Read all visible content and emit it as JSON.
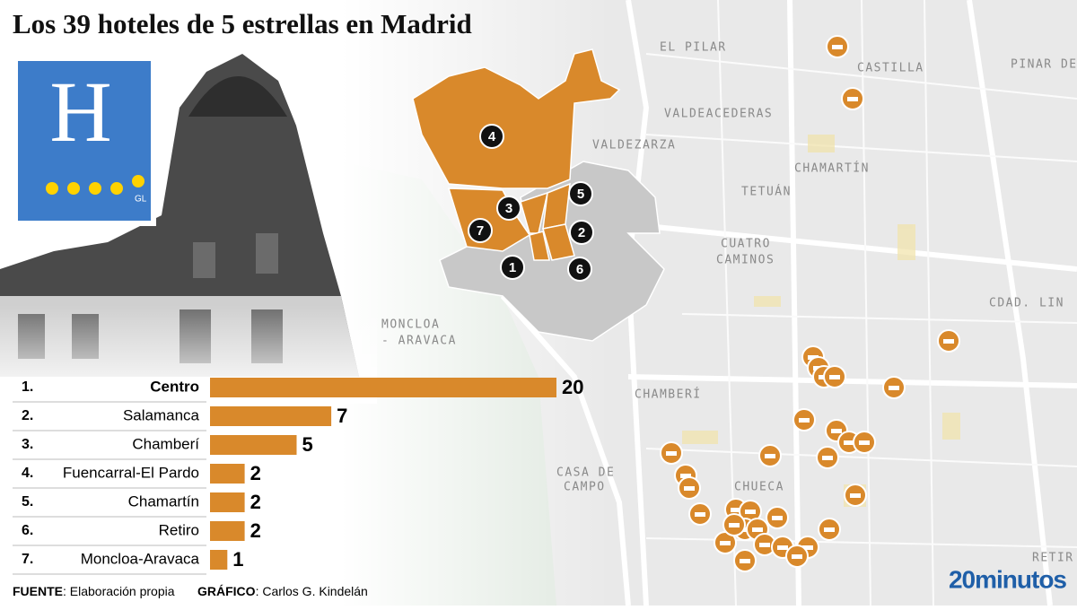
{
  "chart_data": {
    "type": "bar",
    "orientation": "horizontal",
    "title": "Los 39 hoteles de 5 estrellas en Madrid",
    "ranks": [
      "1.",
      "2.",
      "3.",
      "4.",
      "5.",
      "6.",
      "7."
    ],
    "categories": [
      "Centro",
      "Salamanca",
      "Chamberí",
      "Fuencarral-El Pardo",
      "Chamartín",
      "Retiro",
      "Moncloa-Aravaca"
    ],
    "values": [
      20,
      7,
      5,
      2,
      2,
      2,
      1
    ],
    "color": "#d9892b",
    "source_label": "FUENTE",
    "source": ": Elaboración propia",
    "credit_label": "GRÁFICO",
    "credit": ": Carlos G. Kindelán",
    "brand": "20minutos"
  },
  "logo": {
    "letter": "H",
    "tag": "GL"
  },
  "map": {
    "district_numbers": [
      "4",
      "5",
      "3",
      "2",
      "7",
      "1",
      "6"
    ],
    "labels": [
      "EL PILAR",
      "CASTILLA",
      "PINAR DEL R",
      "VALDEACEDERAS",
      "VALDEZARZA",
      "CHAMARTÍN",
      "TETUÁN",
      "CUATRO",
      "CAMINOS",
      "MONCLOA",
      "- ARAVACA",
      "CDAD. LIN",
      "CHAMBERÍ",
      "CASA DE",
      "CAMPO",
      "CHUECA",
      "RETIR"
    ]
  }
}
